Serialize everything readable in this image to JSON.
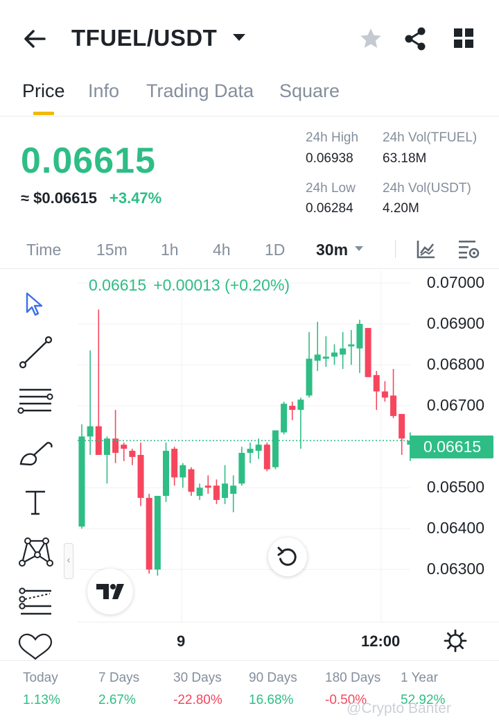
{
  "header": {
    "pair": "TFUEL/USDT",
    "icons": [
      "back-arrow-icon",
      "caret-down-icon",
      "star-icon",
      "share-icon",
      "grid-icon"
    ]
  },
  "tabs": [
    {
      "label": "Price",
      "active": true
    },
    {
      "label": "Info",
      "active": false
    },
    {
      "label": "Trading Data",
      "active": false
    },
    {
      "label": "Square",
      "active": false
    }
  ],
  "summary": {
    "last_price": "0.06615",
    "usd_price": "≈ $0.06615",
    "change_pct": "+3.47%",
    "high_label": "24h High",
    "high_value": "0.06938",
    "low_label": "24h Low",
    "low_value": "0.06284",
    "vol_base_label": "24h Vol(TFUEL)",
    "vol_base_value": "63.18M",
    "vol_quote_label": "24h Vol(USDT)",
    "vol_quote_value": "4.20M"
  },
  "intervals": [
    {
      "label": "Time",
      "active": false
    },
    {
      "label": "15m",
      "active": false
    },
    {
      "label": "1h",
      "active": false
    },
    {
      "label": "4h",
      "active": false
    },
    {
      "label": "1D",
      "active": false
    },
    {
      "label": "30m",
      "active": true
    }
  ],
  "tools": [
    "cursor-icon",
    "trend-line-icon",
    "horizontal-lines-icon",
    "brush-icon",
    "text-tool-icon",
    "pattern-icon",
    "measure-icon",
    "favorites-heart-icon"
  ],
  "colors": {
    "up": "#2ebd85",
    "down": "#f6465d",
    "accent": "#f0b90b"
  },
  "chart": {
    "ohlc_price": "0.06615",
    "ohlc_change": "+0.00013 (+0.20%)",
    "last_price_tag": "0.06615",
    "x_labels": [
      "9",
      "12:00"
    ]
  },
  "chart_data": {
    "type": "candlestick",
    "ylim": [
      0.0627,
      0.07
    ],
    "y_ticks": [
      "0.07000",
      "0.06900",
      "0.06800",
      "0.06700",
      "0.06500",
      "0.06400",
      "0.06300"
    ],
    "x_ticks": [
      "9",
      "12:00"
    ],
    "last_price": 0.06615,
    "candles": [
      {
        "o": 0.06405,
        "h": 0.06655,
        "l": 0.064,
        "c": 0.06625
      },
      {
        "o": 0.06625,
        "h": 0.06835,
        "l": 0.0658,
        "c": 0.0665
      },
      {
        "o": 0.0665,
        "h": 0.06935,
        "l": 0.0658,
        "c": 0.0658
      },
      {
        "o": 0.0658,
        "h": 0.06625,
        "l": 0.0651,
        "c": 0.0662
      },
      {
        "o": 0.0662,
        "h": 0.0669,
        "l": 0.0656,
        "c": 0.06585
      },
      {
        "o": 0.06605,
        "h": 0.0661,
        "l": 0.06565,
        "c": 0.06595
      },
      {
        "o": 0.0659,
        "h": 0.06595,
        "l": 0.06555,
        "c": 0.06575
      },
      {
        "o": 0.0658,
        "h": 0.0661,
        "l": 0.06455,
        "c": 0.06475
      },
      {
        "o": 0.06475,
        "h": 0.06485,
        "l": 0.0629,
        "c": 0.063
      },
      {
        "o": 0.063,
        "h": 0.0648,
        "l": 0.06285,
        "c": 0.0648
      },
      {
        "o": 0.0648,
        "h": 0.0661,
        "l": 0.06465,
        "c": 0.0659
      },
      {
        "o": 0.06595,
        "h": 0.066,
        "l": 0.06505,
        "c": 0.06525
      },
      {
        "o": 0.06525,
        "h": 0.0656,
        "l": 0.065,
        "c": 0.06555
      },
      {
        "o": 0.06545,
        "h": 0.0655,
        "l": 0.0648,
        "c": 0.0649
      },
      {
        "o": 0.0648,
        "h": 0.0651,
        "l": 0.0647,
        "c": 0.065
      },
      {
        "o": 0.06505,
        "h": 0.0653,
        "l": 0.06485,
        "c": 0.065
      },
      {
        "o": 0.06505,
        "h": 0.0652,
        "l": 0.0646,
        "c": 0.0647
      },
      {
        "o": 0.06475,
        "h": 0.06555,
        "l": 0.0646,
        "c": 0.0651
      },
      {
        "o": 0.06485,
        "h": 0.0653,
        "l": 0.0644,
        "c": 0.06505
      },
      {
        "o": 0.0651,
        "h": 0.066,
        "l": 0.06505,
        "c": 0.06585
      },
      {
        "o": 0.06585,
        "h": 0.0661,
        "l": 0.0656,
        "c": 0.06595
      },
      {
        "o": 0.0659,
        "h": 0.0662,
        "l": 0.0657,
        "c": 0.06605
      },
      {
        "o": 0.06605,
        "h": 0.0661,
        "l": 0.0654,
        "c": 0.06545
      },
      {
        "o": 0.0655,
        "h": 0.0664,
        "l": 0.06545,
        "c": 0.0664
      },
      {
        "o": 0.06635,
        "h": 0.0671,
        "l": 0.0663,
        "c": 0.06705
      },
      {
        "o": 0.067,
        "h": 0.0671,
        "l": 0.06665,
        "c": 0.0669
      },
      {
        "o": 0.0669,
        "h": 0.0672,
        "l": 0.06595,
        "c": 0.06715
      },
      {
        "o": 0.06725,
        "h": 0.0688,
        "l": 0.0672,
        "c": 0.06815
      },
      {
        "o": 0.0681,
        "h": 0.06905,
        "l": 0.06785,
        "c": 0.06825
      },
      {
        "o": 0.06815,
        "h": 0.0687,
        "l": 0.06795,
        "c": 0.0682
      },
      {
        "o": 0.0682,
        "h": 0.0685,
        "l": 0.068,
        "c": 0.0683
      },
      {
        "o": 0.06825,
        "h": 0.0688,
        "l": 0.0679,
        "c": 0.0684
      },
      {
        "o": 0.06845,
        "h": 0.06885,
        "l": 0.068,
        "c": 0.0685
      },
      {
        "o": 0.0684,
        "h": 0.0691,
        "l": 0.0678,
        "c": 0.069
      },
      {
        "o": 0.0689,
        "h": 0.0689,
        "l": 0.0677,
        "c": 0.0677
      },
      {
        "o": 0.06775,
        "h": 0.06785,
        "l": 0.0669,
        "c": 0.06735
      },
      {
        "o": 0.06735,
        "h": 0.0676,
        "l": 0.0671,
        "c": 0.0672
      },
      {
        "o": 0.06725,
        "h": 0.0679,
        "l": 0.0667,
        "c": 0.06675
      },
      {
        "o": 0.0668,
        "h": 0.0668,
        "l": 0.0658,
        "c": 0.0662
      },
      {
        "o": 0.06605,
        "h": 0.06635,
        "l": 0.06565,
        "c": 0.06615
      }
    ]
  },
  "performance": [
    {
      "label": "Today",
      "value": "1.13%",
      "trend": "up"
    },
    {
      "label": "7 Days",
      "value": "2.67%",
      "trend": "up"
    },
    {
      "label": "30 Days",
      "value": "-22.80%",
      "trend": "down"
    },
    {
      "label": "90 Days",
      "value": "16.68%",
      "trend": "up"
    },
    {
      "label": "180 Days",
      "value": "-0.50%",
      "trend": "down"
    },
    {
      "label": "1 Year",
      "value": "52.92%",
      "trend": "up"
    }
  ],
  "watermark": "@Crypto Banter"
}
